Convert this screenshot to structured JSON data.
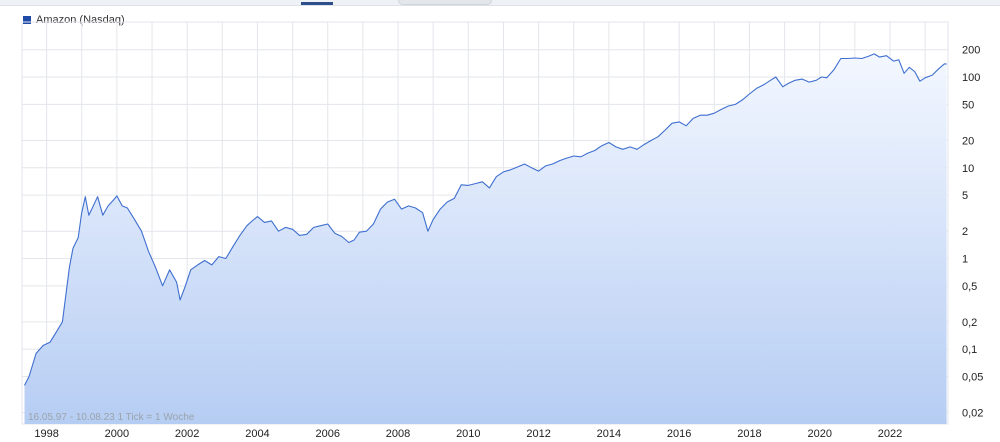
{
  "page": {
    "legend_label": "Amazon (Nasdaq)",
    "range_note": "16.05.97 - 10.08.23   1 Tick = 1 Woche"
  },
  "colors": {
    "line": "#3f6fcf",
    "legend_swatch": "#1f4aa8",
    "fill_top": "#f3f7ff",
    "fill_bottom": "#b6cdf3",
    "grid": "#e3e6eb",
    "axis_text": "#222222"
  },
  "chart_data": {
    "type": "area",
    "title": "",
    "xlabel": "",
    "ylabel": "",
    "scale_y": "log",
    "grid": true,
    "legend": "top-left",
    "series": [
      {
        "name": "Amazon (Nasdaq)",
        "points": [
          [
            1997.37,
            0.04
          ],
          [
            1997.5,
            0.05
          ],
          [
            1997.7,
            0.09
          ],
          [
            1997.9,
            0.11
          ],
          [
            1998.1,
            0.12
          ],
          [
            1998.3,
            0.16
          ],
          [
            1998.45,
            0.2
          ],
          [
            1998.55,
            0.4
          ],
          [
            1998.65,
            0.8
          ],
          [
            1998.75,
            1.3
          ],
          [
            1998.9,
            1.7
          ],
          [
            1999.0,
            3.2
          ],
          [
            1999.1,
            4.8
          ],
          [
            1999.2,
            3.0
          ],
          [
            1999.3,
            3.6
          ],
          [
            1999.45,
            4.8
          ],
          [
            1999.6,
            3.0
          ],
          [
            1999.75,
            3.8
          ],
          [
            1999.9,
            4.4
          ],
          [
            2000.0,
            4.9
          ],
          [
            2000.15,
            3.8
          ],
          [
            2000.3,
            3.6
          ],
          [
            2000.5,
            2.7
          ],
          [
            2000.7,
            2.0
          ],
          [
            2000.9,
            1.2
          ],
          [
            2001.1,
            0.8
          ],
          [
            2001.3,
            0.5
          ],
          [
            2001.5,
            0.75
          ],
          [
            2001.7,
            0.55
          ],
          [
            2001.8,
            0.35
          ],
          [
            2001.95,
            0.5
          ],
          [
            2002.1,
            0.75
          ],
          [
            2002.3,
            0.85
          ],
          [
            2002.5,
            0.95
          ],
          [
            2002.7,
            0.85
          ],
          [
            2002.9,
            1.05
          ],
          [
            2003.1,
            1.0
          ],
          [
            2003.3,
            1.35
          ],
          [
            2003.5,
            1.8
          ],
          [
            2003.7,
            2.3
          ],
          [
            2003.9,
            2.7
          ],
          [
            2004.0,
            2.9
          ],
          [
            2004.2,
            2.5
          ],
          [
            2004.4,
            2.6
          ],
          [
            2004.6,
            2.0
          ],
          [
            2004.8,
            2.2
          ],
          [
            2005.0,
            2.1
          ],
          [
            2005.2,
            1.8
          ],
          [
            2005.4,
            1.85
          ],
          [
            2005.6,
            2.2
          ],
          [
            2005.8,
            2.3
          ],
          [
            2006.0,
            2.4
          ],
          [
            2006.2,
            1.9
          ],
          [
            2006.4,
            1.75
          ],
          [
            2006.6,
            1.5
          ],
          [
            2006.75,
            1.6
          ],
          [
            2006.9,
            1.95
          ],
          [
            2007.1,
            2.0
          ],
          [
            2007.3,
            2.4
          ],
          [
            2007.5,
            3.5
          ],
          [
            2007.7,
            4.2
          ],
          [
            2007.9,
            4.5
          ],
          [
            2008.1,
            3.5
          ],
          [
            2008.3,
            3.8
          ],
          [
            2008.5,
            3.6
          ],
          [
            2008.7,
            3.2
          ],
          [
            2008.85,
            2.0
          ],
          [
            2009.0,
            2.7
          ],
          [
            2009.2,
            3.5
          ],
          [
            2009.4,
            4.2
          ],
          [
            2009.6,
            4.6
          ],
          [
            2009.8,
            6.5
          ],
          [
            2010.0,
            6.4
          ],
          [
            2010.2,
            6.7
          ],
          [
            2010.4,
            7.0
          ],
          [
            2010.6,
            6.0
          ],
          [
            2010.8,
            8.0
          ],
          [
            2011.0,
            9.0
          ],
          [
            2011.2,
            9.5
          ],
          [
            2011.4,
            10.2
          ],
          [
            2011.6,
            11.0
          ],
          [
            2011.8,
            10.0
          ],
          [
            2012.0,
            9.2
          ],
          [
            2012.2,
            10.5
          ],
          [
            2012.4,
            11.0
          ],
          [
            2012.6,
            12.0
          ],
          [
            2012.8,
            12.8
          ],
          [
            2013.0,
            13.5
          ],
          [
            2013.2,
            13.2
          ],
          [
            2013.4,
            14.5
          ],
          [
            2013.6,
            15.5
          ],
          [
            2013.8,
            17.5
          ],
          [
            2014.0,
            19.0
          ],
          [
            2014.2,
            17.0
          ],
          [
            2014.4,
            16.0
          ],
          [
            2014.6,
            17.0
          ],
          [
            2014.8,
            16.0
          ],
          [
            2015.0,
            18.0
          ],
          [
            2015.2,
            20.0
          ],
          [
            2015.4,
            22.0
          ],
          [
            2015.6,
            26.0
          ],
          [
            2015.8,
            31.0
          ],
          [
            2016.0,
            32.0
          ],
          [
            2016.2,
            29.0
          ],
          [
            2016.4,
            35.0
          ],
          [
            2016.6,
            38.0
          ],
          [
            2016.8,
            38.0
          ],
          [
            2017.0,
            40.0
          ],
          [
            2017.2,
            44.0
          ],
          [
            2017.4,
            48.0
          ],
          [
            2017.6,
            50.0
          ],
          [
            2017.8,
            56.0
          ],
          [
            2018.0,
            65.0
          ],
          [
            2018.2,
            75.0
          ],
          [
            2018.4,
            82.0
          ],
          [
            2018.6,
            92.0
          ],
          [
            2018.75,
            100.0
          ],
          [
            2018.95,
            78.0
          ],
          [
            2019.1,
            85.0
          ],
          [
            2019.3,
            92.0
          ],
          [
            2019.5,
            95.0
          ],
          [
            2019.7,
            88.0
          ],
          [
            2019.9,
            92.0
          ],
          [
            2020.05,
            100.0
          ],
          [
            2020.2,
            98.0
          ],
          [
            2020.4,
            120.0
          ],
          [
            2020.6,
            160.0
          ],
          [
            2020.8,
            160.0
          ],
          [
            2021.0,
            162.0
          ],
          [
            2021.2,
            160.0
          ],
          [
            2021.4,
            170.0
          ],
          [
            2021.55,
            180.0
          ],
          [
            2021.7,
            166.0
          ],
          [
            2021.9,
            172.0
          ],
          [
            2022.1,
            150.0
          ],
          [
            2022.25,
            155.0
          ],
          [
            2022.4,
            110.0
          ],
          [
            2022.55,
            128.0
          ],
          [
            2022.7,
            115.0
          ],
          [
            2022.85,
            90.0
          ],
          [
            2023.0,
            98.0
          ],
          [
            2023.2,
            105.0
          ],
          [
            2023.4,
            125.0
          ],
          [
            2023.55,
            140.0
          ],
          [
            2023.61,
            139.0
          ]
        ]
      }
    ],
    "x_ticks": [
      "1998",
      "2000",
      "2002",
      "2004",
      "2006",
      "2008",
      "2010",
      "2012",
      "2014",
      "2016",
      "2018",
      "2020",
      "2022"
    ],
    "x_tick_values": [
      1998,
      2000,
      2002,
      2004,
      2006,
      2008,
      2010,
      2012,
      2014,
      2016,
      2018,
      2020,
      2022
    ],
    "xlim": [
      1997.3,
      2023.65
    ],
    "y_ticks": [
      {
        "value": 200,
        "label": "200"
      },
      {
        "value": 100,
        "label": "100"
      },
      {
        "value": 50,
        "label": "50"
      },
      {
        "value": 20,
        "label": "20"
      },
      {
        "value": 10,
        "label": "10"
      },
      {
        "value": 5,
        "label": "5"
      },
      {
        "value": 2,
        "label": "2"
      },
      {
        "value": 1,
        "label": "1"
      },
      {
        "value": 0.5,
        "label": "0,5"
      },
      {
        "value": 0.2,
        "label": "0,2"
      },
      {
        "value": 0.1,
        "label": "0,1"
      },
      {
        "value": 0.05,
        "label": "0,05"
      },
      {
        "value": 0.02,
        "label": "0,02"
      }
    ],
    "ylim": [
      0.015,
      330
    ]
  }
}
